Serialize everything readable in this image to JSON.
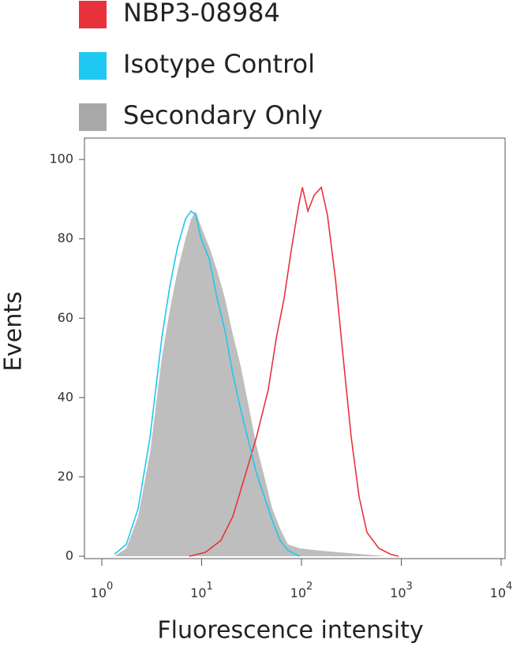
{
  "chart_data": {
    "type": "histogram-overlay",
    "xlabel": "Fluorescence intensity",
    "ylabel": "Events",
    "xscale": "log",
    "xlim": [
      0.67,
      10960
    ],
    "ylim": [
      -0.6,
      105.4
    ],
    "xticks": [
      {
        "value": 1,
        "label": "10",
        "sup": "0"
      },
      {
        "value": 10,
        "label": "10",
        "sup": "1"
      },
      {
        "value": 100,
        "label": "10",
        "sup": "2"
      },
      {
        "value": 1000,
        "label": "10",
        "sup": "3"
      },
      {
        "value": 10000,
        "label": "10",
        "sup": "4"
      }
    ],
    "yticks": [
      0,
      20,
      40,
      60,
      80,
      100
    ],
    "series": [
      {
        "name": "NBP3-08984",
        "color": "#e8323c",
        "style": "line",
        "x": [
          7.5,
          10.9,
          15.6,
          20.5,
          27,
          35.4,
          46.5,
          56,
          67,
          80,
          93,
          102,
          116,
          134,
          158,
          182,
          219,
          262,
          315,
          378,
          453,
          596,
          782,
          938
        ],
        "values": [
          0,
          1,
          4,
          10,
          20,
          30,
          42,
          55,
          65,
          78,
          88,
          93,
          87,
          91,
          93,
          86,
          70,
          50,
          30,
          15,
          6,
          2,
          0.5,
          0
        ]
      },
      {
        "name": "Isotype Control",
        "color": "#1ec8f0",
        "style": "line",
        "x": [
          1.34,
          1.76,
          2.31,
          3.04,
          3.99,
          4.79,
          5.74,
          6.89,
          7.82,
          8.72,
          9.9,
          11.9,
          14.3,
          17.1,
          20.5,
          24.6,
          29.5,
          35.4,
          42.5,
          51,
          61,
          73,
          96
        ],
        "values": [
          0.5,
          3,
          12,
          30,
          55,
          68,
          78,
          85,
          87,
          86,
          80,
          75,
          65,
          57,
          46,
          37,
          29,
          21,
          15,
          9,
          4,
          1.5,
          0
        ]
      },
      {
        "name": "Secondary Only",
        "color": "#a8a8a8",
        "style": "area",
        "x": [
          1.34,
          1.76,
          2.31,
          3.04,
          3.99,
          4.79,
          5.74,
          6.89,
          7.82,
          8.72,
          9.9,
          11.9,
          14.3,
          17.1,
          20.5,
          24.6,
          29.5,
          35.4,
          42.5,
          51,
          61,
          73,
          96,
          139,
          240,
          415,
          710
        ],
        "values": [
          0,
          2,
          10,
          26,
          50,
          62,
          72,
          80,
          85,
          87,
          83,
          78,
          72,
          65,
          56,
          48,
          38,
          28,
          20,
          12,
          7,
          3,
          2,
          1.5,
          1,
          0.5,
          0
        ]
      }
    ]
  }
}
